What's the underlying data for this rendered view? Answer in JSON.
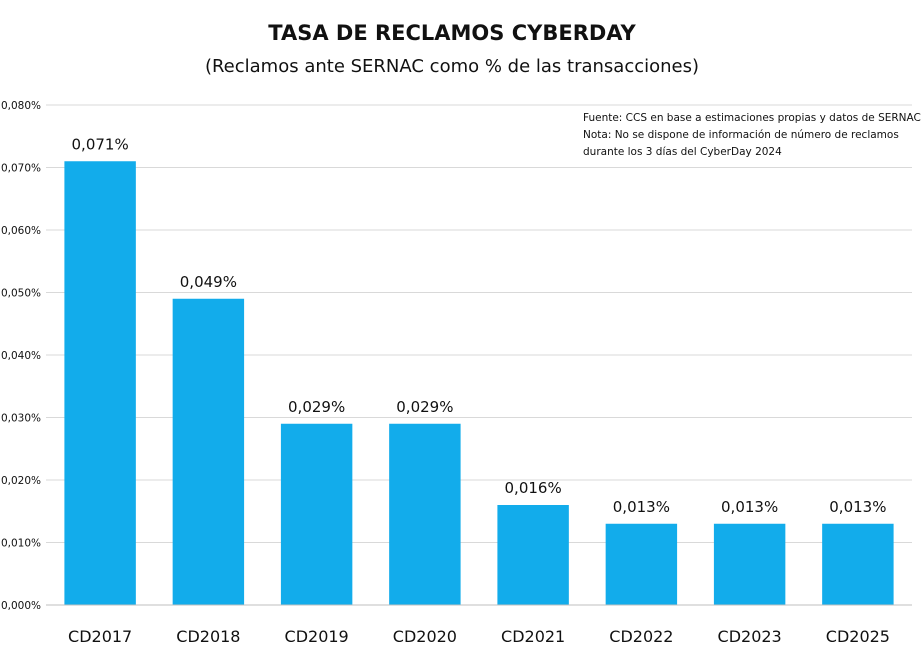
{
  "chart_data": {
    "type": "bar",
    "title": "TASA DE RECLAMOS CYBERDAY",
    "subtitle": "(Reclamos ante SERNAC como % de las transacciones)",
    "notes": [
      "Fuente: CCS en base a estimaciones propias y datos de SERNAC",
      "Nota: No se dispone de información de número de reclamos",
      "durante los 3 días del CyberDay 2024"
    ],
    "categories": [
      "CD2017",
      "CD2018",
      "CD2019",
      "CD2020",
      "CD2021",
      "CD2022",
      "CD2023",
      "CD2025"
    ],
    "values": [
      0.071,
      0.049,
      0.029,
      0.029,
      0.016,
      0.013,
      0.013,
      0.013
    ],
    "data_labels": [
      "0,071%",
      "0,049%",
      "0,029%",
      "0,029%",
      "0,016%",
      "0,013%",
      "0,013%",
      "0,013%"
    ],
    "ylim": [
      0,
      0.08
    ],
    "yticks": [
      0,
      0.01,
      0.02,
      0.03,
      0.04,
      0.05,
      0.06,
      0.07,
      0.08
    ],
    "ytick_labels": [
      "0,000%",
      "0,010%",
      "0,020%",
      "0,030%",
      "0,040%",
      "0,050%",
      "0,060%",
      "0,070%",
      "0,080%"
    ],
    "xlabel": "",
    "ylabel": "",
    "grid": true,
    "bar_color": "#12ACEB"
  }
}
